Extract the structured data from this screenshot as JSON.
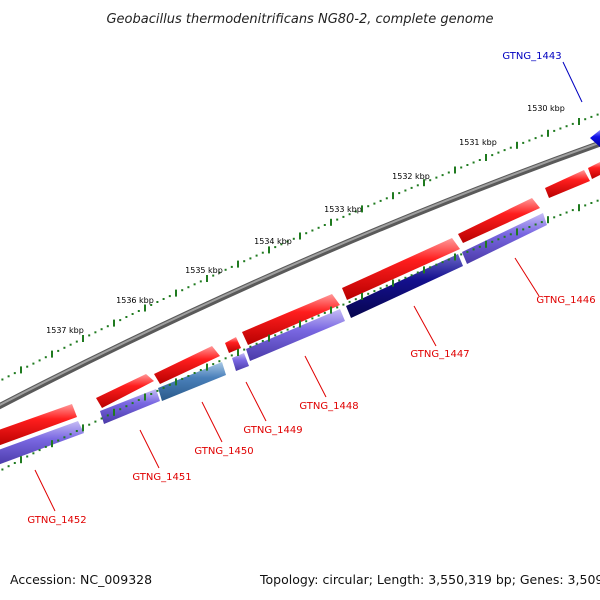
{
  "title": "Geobacillus thermodenitrificans NG80-2, complete genome",
  "footer": {
    "accession": "Accession: NC_009328",
    "topology": "Topology: circular; Length: 3,550,319 bp; Genes: 3,509"
  },
  "colors": {
    "backbone": "#808080",
    "forward_gene": "#ff1a1a",
    "reverse_gene": "#7a66e0",
    "reverse_gene_dark": "#100a8a",
    "reverse_gene_teal": "#4a7fb8",
    "highlight_gene": "#1010e8",
    "tick": "#1f7a1f",
    "label_red": "#e00000",
    "label_blue": "#0000c0"
  },
  "ticks": [
    "1530 kbp",
    "1531 kbp",
    "1532 kbp",
    "1533 kbp",
    "1534 kbp",
    "1535 kbp",
    "1536 kbp",
    "1537 kbp"
  ],
  "genes": [
    {
      "name": "GTNG_1443",
      "color": "blue"
    },
    {
      "name": "GTNG_1446",
      "color": "red"
    },
    {
      "name": "GTNG_1447",
      "color": "red"
    },
    {
      "name": "GTNG_1448",
      "color": "red"
    },
    {
      "name": "GTNG_1449",
      "color": "red"
    },
    {
      "name": "GTNG_1450",
      "color": "red"
    },
    {
      "name": "GTNG_1451",
      "color": "red"
    },
    {
      "name": "GTNG_1452",
      "color": "red"
    }
  ]
}
